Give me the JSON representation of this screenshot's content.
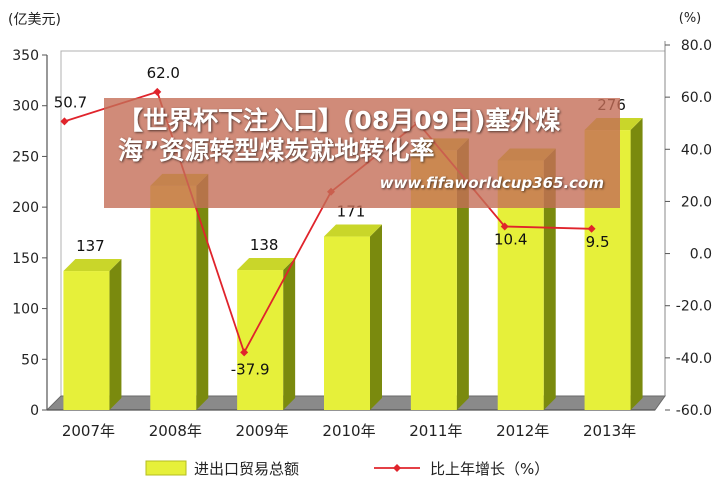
{
  "chart_data": {
    "type": "bar",
    "categories": [
      "2007年",
      "2008年",
      "2009年",
      "2010年",
      "2011年",
      "2012年",
      "2013年"
    ],
    "series": [
      {
        "name": "进出口贸易总额",
        "kind": "bar",
        "axis": "left",
        "values": [
          137,
          221,
          138,
          171,
          256,
          246,
          276
        ],
        "labels": [
          "137",
          "",
          "138",
          "171",
          "",
          "",
          "276"
        ],
        "color": "#e6f03a"
      },
      {
        "name": "比上年增长（%）",
        "kind": "line",
        "axis": "right",
        "values": [
          50.7,
          62.0,
          -37.9,
          23.7,
          50.2,
          10.4,
          9.5
        ],
        "labels": [
          "50.7",
          "62.0",
          "-37.9",
          "",
          "",
          "10.4",
          "9.5"
        ],
        "color": "#e0242c"
      }
    ],
    "y_left": {
      "label": "(亿美元)",
      "min": 0,
      "max": 350,
      "ticks": [
        "0",
        "50",
        "100",
        "150",
        "200",
        "250",
        "300",
        "350"
      ]
    },
    "y_right": {
      "label": "(%)",
      "min": -60,
      "max": 80,
      "ticks": [
        "-60.0",
        "-40.0",
        "-20.0",
        "0.0",
        "20.0",
        "40.0",
        "60.0",
        "80.0"
      ]
    },
    "grid": false,
    "legend_position": "bottom"
  },
  "overlay": {
    "title": "【世界杯下注入口】(08月09日)塞外煤海”资源转型煤炭就地转化率",
    "url": "www.fifaworldcup365.com"
  },
  "colors": {
    "bar_face": "#e6f03a",
    "bar_side": "#7a8a0e",
    "line": "#e0242c",
    "overlay": "#c46e58"
  }
}
